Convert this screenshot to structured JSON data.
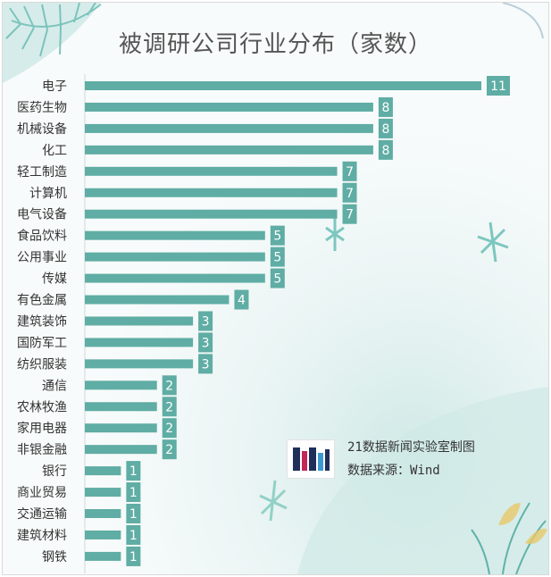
{
  "chart_data": {
    "type": "bar",
    "orientation": "horizontal",
    "title": "被调研公司行业分布（家数）",
    "categories": [
      "电子",
      "医药生物",
      "机械设备",
      "化工",
      "轻工制造",
      "计算机",
      "电气设备",
      "食品饮料",
      "公用事业",
      "传媒",
      "有色金属",
      "建筑装饰",
      "国防军工",
      "纺织服装",
      "通信",
      "农林牧渔",
      "家用电器",
      "非银金融",
      "银行",
      "商业贸易",
      "交通运输",
      "建筑材料",
      "钢铁"
    ],
    "values": [
      11,
      8,
      8,
      8,
      7,
      7,
      7,
      5,
      5,
      5,
      4,
      3,
      3,
      3,
      2,
      2,
      2,
      2,
      1,
      1,
      1,
      1,
      1
    ],
    "xlim": [
      0,
      11
    ],
    "grid": false,
    "data_labels": true,
    "bar_color": "#5fada4"
  },
  "credit": {
    "line1": "21数据新闻实验室制图",
    "line2": "数据来源：Wind",
    "logo_icon": "21-data-lab-logo"
  }
}
